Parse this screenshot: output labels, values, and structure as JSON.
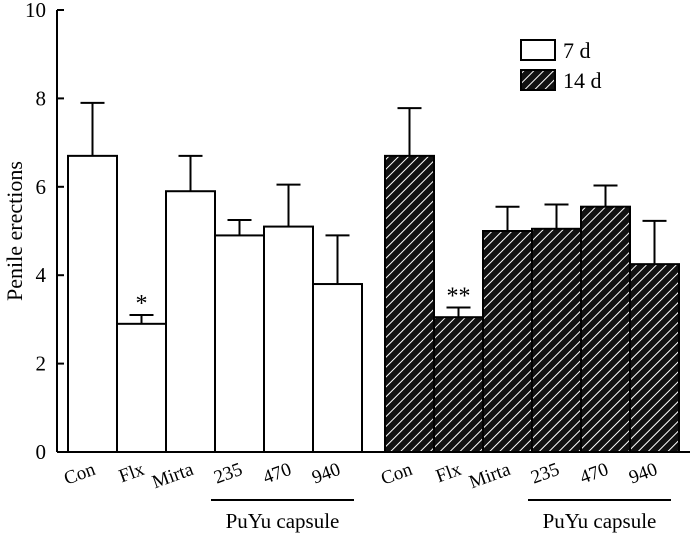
{
  "chart_data": {
    "type": "bar",
    "ylabel": "Penile erections",
    "ylim": [
      0,
      10
    ],
    "yticks": [
      "0",
      "2",
      "4",
      "6",
      "8",
      "10"
    ],
    "categories": [
      "Con",
      "Flx",
      "Mirta",
      "235",
      "470",
      "940"
    ],
    "group_label": "PuYu capsule",
    "legend": {
      "position": "top-right",
      "items": [
        "7 d",
        "14 d"
      ]
    },
    "series": [
      {
        "name": "7 d",
        "pattern": "open",
        "values": [
          6.7,
          2.9,
          5.9,
          4.9,
          5.1,
          3.8
        ],
        "errors": [
          1.2,
          0.2,
          0.8,
          0.35,
          0.95,
          1.1
        ],
        "annotations": [
          "",
          "*",
          "",
          "",
          "",
          ""
        ]
      },
      {
        "name": "14 d",
        "pattern": "hatched",
        "values": [
          6.7,
          3.05,
          5.0,
          5.05,
          5.55,
          4.25
        ],
        "errors": [
          1.08,
          0.22,
          0.55,
          0.55,
          0.48,
          0.98
        ],
        "annotations": [
          "",
          "**",
          "",
          "",
          "",
          ""
        ]
      }
    ]
  }
}
